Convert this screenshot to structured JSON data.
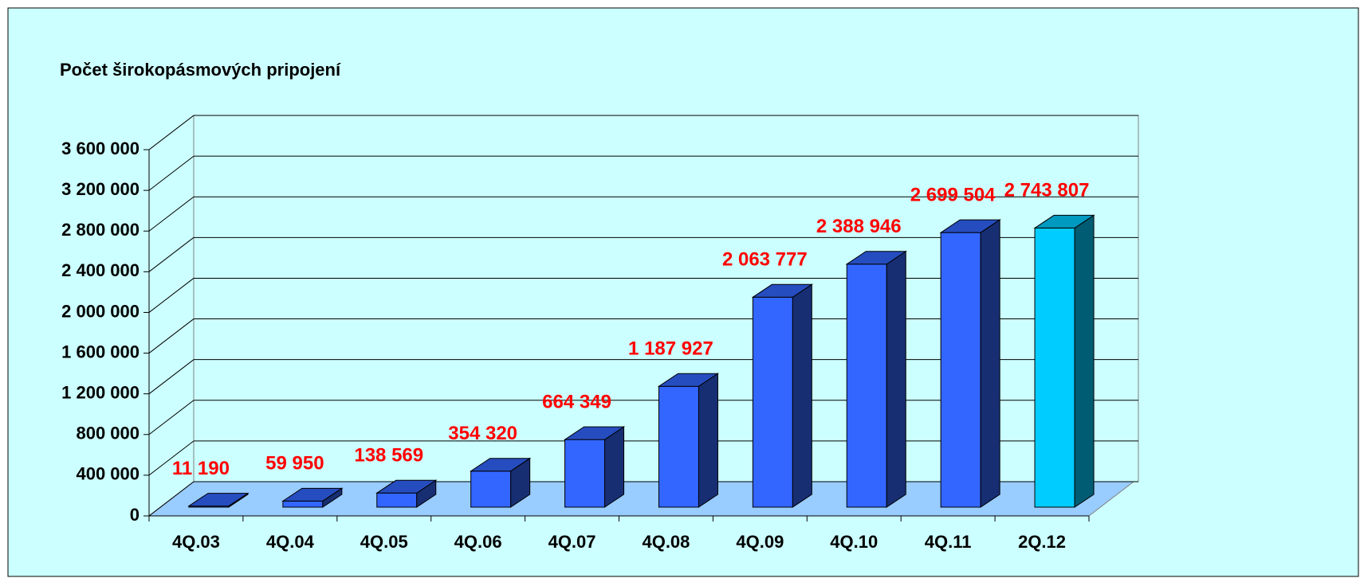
{
  "chart_data": {
    "type": "bar3d",
    "title": "Počet širokopásmových pripojení",
    "categories": [
      "4Q.03",
      "4Q.04",
      "4Q.05",
      "4Q.06",
      "4Q.07",
      "4Q.08",
      "4Q.09",
      "4Q.10",
      "4Q.11",
      "2Q.12"
    ],
    "values": [
      11190,
      59950,
      138569,
      354320,
      664349,
      1187927,
      2063777,
      2388946,
      2699504,
      2743807
    ],
    "value_labels": [
      "11 190",
      "59 950",
      "138 569",
      "354 320",
      "664 349",
      "1 187 927",
      "2 063 777",
      "2 388 946",
      "2 699 504",
      "2 743 807"
    ],
    "colors": [
      "#3366ff",
      "#3366ff",
      "#3366ff",
      "#3366ff",
      "#3366ff",
      "#3366ff",
      "#3366ff",
      "#3366ff",
      "#3366ff",
      "#00ccff"
    ],
    "ylim": [
      0,
      3600000
    ],
    "yticks": [
      {
        "value": 0,
        "label": "0"
      },
      {
        "value": 400000,
        "label": "400 000"
      },
      {
        "value": 800000,
        "label": "800 000"
      },
      {
        "value": 1200000,
        "label": "1 200 000"
      },
      {
        "value": 1600000,
        "label": "1 600 000"
      },
      {
        "value": 2000000,
        "label": "2 000 000"
      },
      {
        "value": 2400000,
        "label": "2 400 000"
      },
      {
        "value": 2800000,
        "label": "2 800 000"
      },
      {
        "value": 3200000,
        "label": "3 200 000"
      },
      {
        "value": 3600000,
        "label": "3 600 000"
      }
    ],
    "grid": true
  }
}
